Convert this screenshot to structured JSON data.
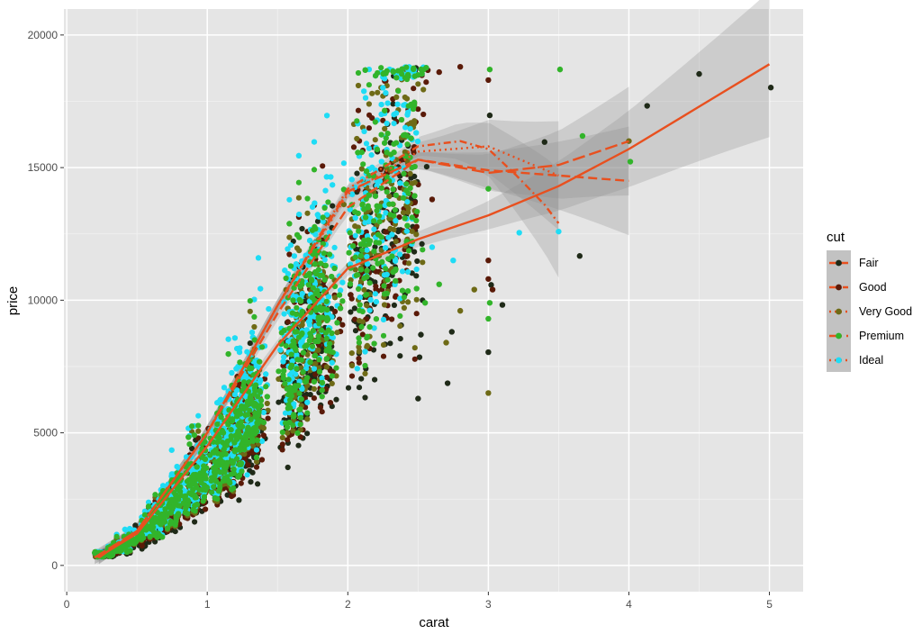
{
  "chart_data": {
    "type": "scatter",
    "title": "",
    "xlabel": "carat",
    "ylabel": "price",
    "xlim": [
      -0.02,
      5.24
    ],
    "ylim": [
      -990,
      20980
    ],
    "xticks": [
      0,
      1,
      2,
      3,
      4,
      5
    ],
    "yticks": [
      0,
      5000,
      10000,
      15000,
      20000
    ],
    "xtick_labels": [
      "0",
      "1",
      "2",
      "3",
      "4",
      "5"
    ],
    "ytick_labels": [
      "0",
      "5000",
      "10000",
      "15000",
      "20000"
    ],
    "grid": true,
    "legend": {
      "title": "cut",
      "position": "right"
    },
    "series": [
      {
        "name": "Fair",
        "color": "#1f2a18",
        "line_color": "#e8501f",
        "dash": "solid",
        "outliers": [
          [
            5.01,
            18018
          ],
          [
            4.5,
            18531
          ],
          [
            4.13,
            17329
          ],
          [
            3.4,
            15964
          ],
          [
            3.65,
            11668
          ],
          [
            3.01,
            16970
          ],
          [
            3.02,
            10577
          ],
          [
            3.1,
            9823
          ],
          [
            2.71,
            6870
          ],
          [
            2.5,
            6290
          ],
          [
            3.0,
            8040
          ],
          [
            2.74,
            8807
          ],
          [
            2.52,
            8700
          ],
          [
            2.51,
            7850
          ]
        ],
        "trend": [
          [
            0.22,
            300
          ],
          [
            0.5,
            1200
          ],
          [
            1.0,
            4500
          ],
          [
            1.5,
            8300
          ],
          [
            2.0,
            11200
          ],
          [
            2.5,
            12300
          ],
          [
            3.0,
            13200
          ],
          [
            3.5,
            14300
          ],
          [
            4.0,
            15700
          ],
          [
            4.5,
            17300
          ],
          [
            5.0,
            18900
          ]
        ]
      },
      {
        "name": "Good",
        "color": "#5a1a08",
        "line_color": "#e8501f",
        "dash": "dashed",
        "outliers": [
          [
            2.8,
            18800
          ],
          [
            2.65,
            18600
          ],
          [
            3.0,
            18300
          ],
          [
            2.6,
            13800
          ],
          [
            3.0,
            11500
          ],
          [
            3.0,
            10800
          ],
          [
            3.03,
            10400
          ]
        ],
        "trend": [
          [
            0.23,
            300
          ],
          [
            0.5,
            1300
          ],
          [
            1.0,
            5000
          ],
          [
            1.5,
            9500
          ],
          [
            2.0,
            13500
          ],
          [
            2.5,
            15300
          ],
          [
            3.0,
            14900
          ],
          [
            3.5,
            14700
          ],
          [
            4.0,
            14500
          ]
        ]
      },
      {
        "name": "Very Good",
        "color": "#6e6a16",
        "line_color": "#e8501f",
        "dash": "dotdash",
        "outliers": [
          [
            2.8,
            9600
          ],
          [
            2.7,
            8400
          ],
          [
            3.0,
            6500
          ],
          [
            4.0,
            16000
          ],
          [
            2.9,
            10400
          ]
        ],
        "trend": [
          [
            0.23,
            300
          ],
          [
            0.5,
            1300
          ],
          [
            1.0,
            5000
          ],
          [
            1.5,
            9800
          ],
          [
            2.0,
            14200
          ],
          [
            2.5,
            15800
          ],
          [
            2.8,
            16000
          ],
          [
            3.0,
            15700
          ],
          [
            3.2,
            14700
          ],
          [
            3.4,
            13600
          ],
          [
            3.5,
            12900
          ]
        ]
      },
      {
        "name": "Premium",
        "color": "#32b42a",
        "line_color": "#e8501f",
        "dash": "longdash",
        "outliers": [
          [
            3.51,
            18701
          ],
          [
            3.01,
            18700
          ],
          [
            3.67,
            16193
          ],
          [
            4.01,
            15223
          ],
          [
            3.0,
            14200
          ],
          [
            3.01,
            9900
          ],
          [
            3.0,
            9300
          ],
          [
            2.55,
            9900
          ],
          [
            2.65,
            10600
          ]
        ],
        "trend": [
          [
            0.2,
            300
          ],
          [
            0.5,
            1300
          ],
          [
            1.0,
            5000
          ],
          [
            1.5,
            9800
          ],
          [
            2.0,
            14100
          ],
          [
            2.5,
            15300
          ],
          [
            3.0,
            14800
          ],
          [
            3.5,
            15100
          ],
          [
            4.0,
            16000
          ]
        ]
      },
      {
        "name": "Ideal",
        "color": "#1fdcf5",
        "line_color": "#e8501f",
        "dash": "dotted",
        "outliers": [
          [
            3.22,
            12545
          ],
          [
            3.5,
            12587
          ],
          [
            2.75,
            11500
          ],
          [
            2.6,
            12000
          ]
        ],
        "trend": [
          [
            0.2,
            300
          ],
          [
            0.5,
            1300
          ],
          [
            1.0,
            5000
          ],
          [
            1.5,
            9800
          ],
          [
            2.0,
            14000
          ],
          [
            2.5,
            15600
          ],
          [
            3.0,
            15800
          ],
          [
            3.5,
            14700
          ]
        ]
      }
    ]
  }
}
